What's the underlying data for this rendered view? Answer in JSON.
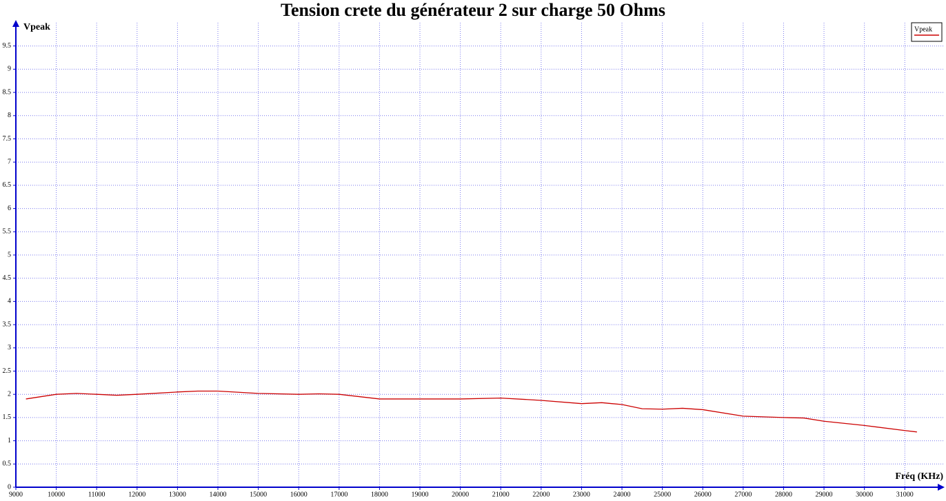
{
  "chart_data": {
    "type": "line",
    "title": "Tension crete du générateur 2 sur charge 50 Ohms",
    "x_label": "Fréq (KHz)",
    "y_label": "Vpeak",
    "x": [
      9250,
      10000,
      10500,
      11000,
      11500,
      12000,
      13000,
      13500,
      14000,
      15000,
      16000,
      16500,
      17000,
      18000,
      19000,
      20000,
      21000,
      22000,
      23000,
      23500,
      24000,
      24500,
      25000,
      25500,
      26000,
      27000,
      28000,
      28500,
      29000,
      30000,
      31000,
      31300
    ],
    "series": [
      {
        "name": "Vpeak",
        "color": "#cc0000",
        "values": [
          1.9,
          2.0,
          2.02,
          2.0,
          1.98,
          2.0,
          2.05,
          2.07,
          2.07,
          2.02,
          2.0,
          2.01,
          2.0,
          1.9,
          1.9,
          1.9,
          1.92,
          1.87,
          1.8,
          1.82,
          1.78,
          1.69,
          1.68,
          1.7,
          1.67,
          1.53,
          1.5,
          1.49,
          1.42,
          1.33,
          1.22,
          1.19
        ]
      }
    ],
    "xlim": [
      9000,
      31900
    ],
    "xticks": [
      9000,
      10000,
      11000,
      12000,
      13000,
      14000,
      15000,
      16000,
      17000,
      18000,
      19000,
      20000,
      21000,
      22000,
      23000,
      24000,
      25000,
      26000,
      27000,
      28000,
      29000,
      30000,
      31000
    ],
    "ylim": [
      0,
      10
    ],
    "yticks": [
      0,
      0.5,
      1,
      1.5,
      2,
      2.5,
      3,
      3.5,
      4,
      4.5,
      5,
      5.5,
      6,
      6.5,
      7,
      7.5,
      8,
      8.5,
      9,
      9.5
    ],
    "grid": true,
    "legend": "top-right"
  }
}
